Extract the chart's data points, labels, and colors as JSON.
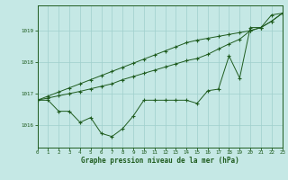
{
  "xlabel": "Graphe pression niveau de la mer (hPa)",
  "background_color": "#c5e8e5",
  "grid_color": "#9fcfcc",
  "line_color": "#1f5c1f",
  "xlim": [
    0,
    23
  ],
  "ylim": [
    1015.3,
    1019.8
  ],
  "yticks": [
    1016,
    1017,
    1018,
    1019
  ],
  "xticks": [
    0,
    1,
    2,
    3,
    4,
    5,
    6,
    7,
    8,
    9,
    10,
    11,
    12,
    13,
    14,
    15,
    16,
    17,
    18,
    19,
    20,
    21,
    22,
    23
  ],
  "hours": [
    0,
    1,
    2,
    3,
    4,
    5,
    6,
    7,
    8,
    9,
    10,
    11,
    12,
    13,
    14,
    15,
    16,
    17,
    18,
    19,
    20,
    21,
    22,
    23
  ],
  "series1": [
    1016.8,
    1016.8,
    1016.45,
    1016.45,
    1016.1,
    1016.25,
    1015.75,
    1015.65,
    1015.9,
    1016.3,
    1016.8,
    1016.8,
    1016.8,
    1016.8,
    1016.8,
    1016.7,
    1017.1,
    1017.15,
    1018.2,
    1017.5,
    1019.1,
    1019.1,
    1019.5,
    1019.55
  ],
  "series2": [
    1016.8,
    1016.93,
    1017.06,
    1017.19,
    1017.32,
    1017.45,
    1017.58,
    1017.71,
    1017.84,
    1017.97,
    1018.1,
    1018.23,
    1018.36,
    1018.49,
    1018.62,
    1018.7,
    1018.76,
    1018.82,
    1018.88,
    1018.94,
    1019.0,
    1019.1,
    1019.3,
    1019.55
  ],
  "series3": [
    1016.8,
    1016.87,
    1016.94,
    1017.01,
    1017.08,
    1017.16,
    1017.24,
    1017.32,
    1017.45,
    1017.55,
    1017.65,
    1017.75,
    1017.85,
    1017.95,
    1018.05,
    1018.12,
    1018.25,
    1018.42,
    1018.58,
    1018.73,
    1019.0,
    1019.1,
    1019.3,
    1019.55
  ]
}
